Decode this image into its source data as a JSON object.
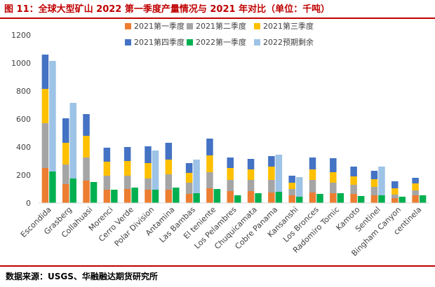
{
  "header": {
    "title": "图 11：全球大型矿山 2022 第一季度产量情况与 2021 年对比（单位：千吨）"
  },
  "footer": {
    "source": "数据来源：USGS、华融融达期货研究所"
  },
  "colors": {
    "accent": "#c00000",
    "q1_2021": "#ed7d31",
    "q2_2021": "#a5a5a5",
    "q3_2021": "#ffc000",
    "q4_2021": "#4472c4",
    "q1_2022": "#00b050",
    "forecast_remaining_2022": "#9dc3e6"
  },
  "chart_data": {
    "type": "bar",
    "title": "",
    "xlabel": "",
    "ylabel": "",
    "ylim": [
      0,
      1200
    ],
    "yticks": [
      0,
      200,
      400,
      600,
      800,
      1000,
      1200
    ],
    "grid": false,
    "legend_position": "top",
    "categories": [
      "Escondida",
      "Grasberg",
      "Collahuasi",
      "Morenci",
      "Cerro Verde",
      "Polar Division",
      "Antamina",
      "Las Bambas",
      "El teniente",
      "Los Pelambres",
      "Chuquicamata",
      "Cobre Panama",
      "Kansanshi",
      "Los Bronces",
      "Radomiro Tomic",
      "Kamoto",
      "Sentinel",
      "Bingham Canyon",
      "centinela"
    ],
    "series": [
      {
        "name": "2021第一季度",
        "stack": "2021",
        "values": [
          250,
          135,
          160,
          95,
          100,
          95,
          95,
          65,
          105,
          85,
          85,
          75,
          55,
          75,
          70,
          65,
          55,
          35,
          55
        ]
      },
      {
        "name": "2021第二季度",
        "stack": "2021",
        "values": [
          320,
          140,
          165,
          100,
          95,
          80,
          110,
          80,
          115,
          80,
          80,
          90,
          45,
          90,
          75,
          65,
          60,
          25,
          35
        ]
      },
      {
        "name": "2021第三季度",
        "stack": "2021",
        "values": [
          245,
          155,
          155,
          100,
          105,
          110,
          105,
          70,
          120,
          85,
          75,
          95,
          45,
          75,
          75,
          60,
          55,
          45,
          50
        ]
      },
      {
        "name": "2021第四季度",
        "stack": "2021",
        "values": [
          245,
          175,
          155,
          100,
          100,
          120,
          120,
          70,
          120,
          75,
          75,
          75,
          50,
          85,
          100,
          70,
          60,
          50,
          40
        ]
      },
      {
        "name": "2022第一季度",
        "stack": "2022",
        "values": [
          225,
          175,
          150,
          95,
          110,
          95,
          110,
          70,
          100,
          55,
          70,
          80,
          45,
          65,
          70,
          50,
          55,
          45,
          55
        ]
      },
      {
        "name": "2022预期剩余",
        "stack": "2022",
        "values": [
          790,
          540,
          0,
          0,
          0,
          280,
          0,
          240,
          0,
          0,
          0,
          265,
          140,
          0,
          0,
          0,
          205,
          0,
          0
        ]
      }
    ]
  }
}
